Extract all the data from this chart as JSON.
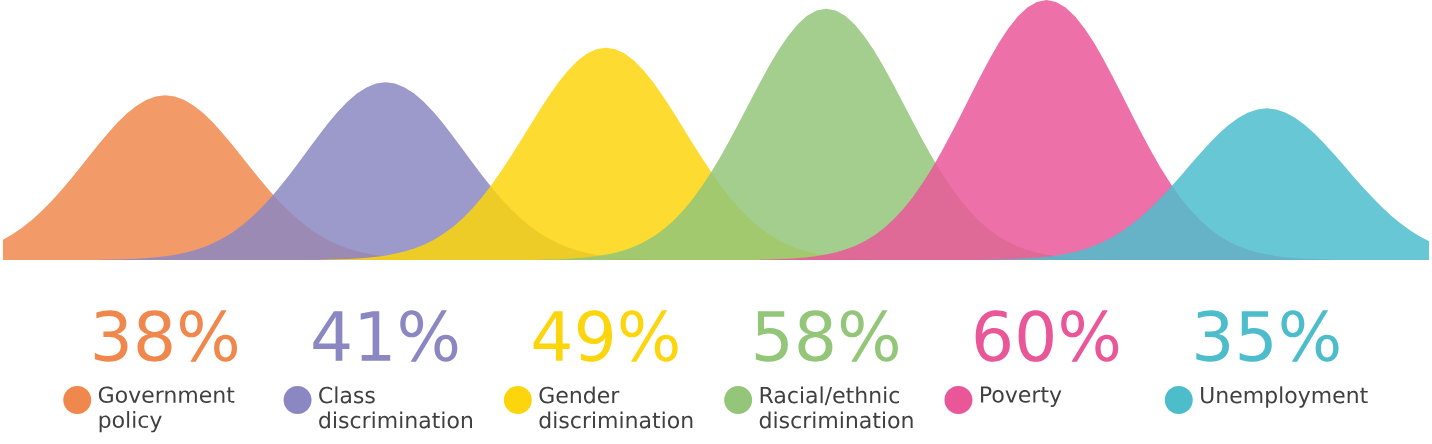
{
  "chart_data": {
    "type": "other",
    "categories": [
      "Government policy",
      "Class discrimination",
      "Gender discrimination",
      "Racial/ethnic discrimination",
      "Poverty",
      "Unemployment"
    ],
    "values": [
      38,
      41,
      49,
      58,
      60,
      35
    ],
    "value_labels": [
      "38%",
      "41%",
      "49%",
      "58%",
      "60%",
      "35%"
    ],
    "colors": [
      "#f0884d",
      "#8b87c2",
      "#fdd50c",
      "#93c679",
      "#ea5799",
      "#4dbdcc"
    ]
  }
}
